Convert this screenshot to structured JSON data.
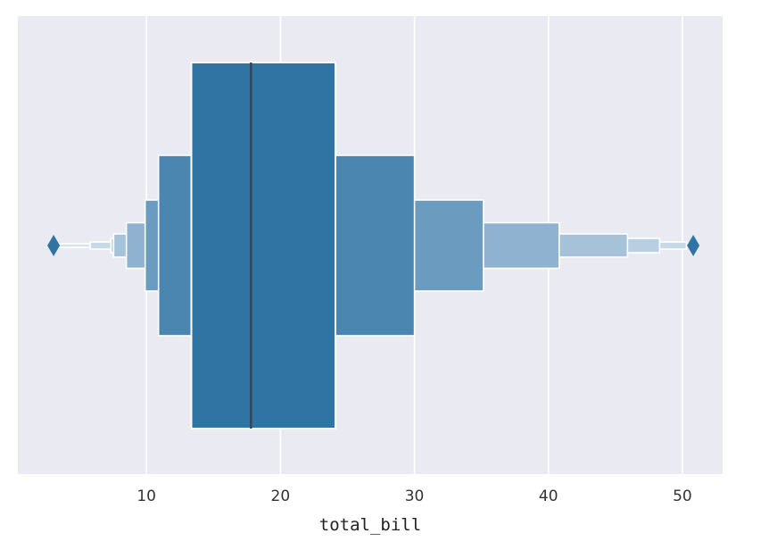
{
  "chart_data": {
    "type": "boxen",
    "xlabel": "total_bill",
    "ylabel": "",
    "xlim": [
      0.4,
      53.0
    ],
    "xticks": [
      10,
      20,
      30,
      40,
      50
    ],
    "grid": true,
    "color": "#2f74a3",
    "background": "#eaeaf2",
    "median": 17.8,
    "boxes": [
      {
        "lower": 13.35,
        "upper": 24.1
      },
      {
        "lower": 10.9,
        "upper": 30.0
      },
      {
        "lower": 9.9,
        "upper": 35.15
      },
      {
        "lower": 8.5,
        "upper": 40.8
      },
      {
        "lower": 7.55,
        "upper": 45.9
      },
      {
        "lower": 7.35,
        "upper": 48.3
      },
      {
        "lower": 5.8,
        "upper": 50.3
      },
      {
        "lower": 3.07,
        "upper": 50.5
      }
    ],
    "outliers": [
      3.07,
      50.81
    ]
  }
}
